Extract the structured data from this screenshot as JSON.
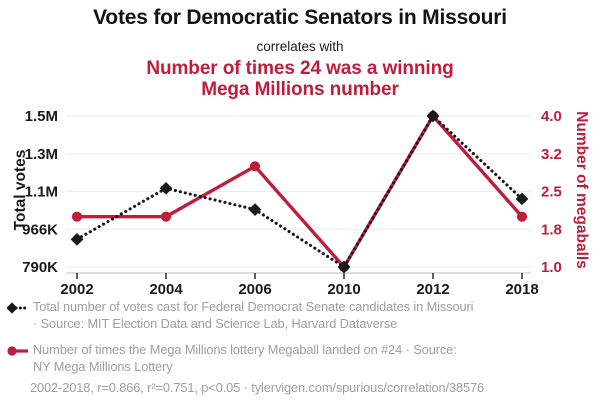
{
  "header": {
    "title": "Votes for Democratic Senators in Missouri",
    "connector": "correlates with",
    "subtitle_line1": "Number of times 24 was a winning",
    "subtitle_line2": "Mega Millions number"
  },
  "colors": {
    "accent_red": "#be1e3c",
    "series_black": "#1a1a1a",
    "caption_gray": "#9e9e9e",
    "gridline": "#ececec",
    "axis_line": "#c9c9c9"
  },
  "chart_data": {
    "type": "line",
    "categories": [
      "2002",
      "2004",
      "2006",
      "2010",
      "2012",
      "2018"
    ],
    "series": [
      {
        "name": "Total number of votes cast for Federal Democrat Senate candidates in Missouri",
        "axis": "left",
        "values": [
          920000,
          1160000,
          1060000,
          790000,
          1500000,
          1110000
        ],
        "color": "#1a1a1a",
        "marker": "diamond",
        "line_style": "dotted"
      },
      {
        "name": "Number of times the Mega Millions lottery Megaball landed on #24",
        "axis": "right",
        "values": [
          2,
          2,
          3,
          1,
          4,
          2
        ],
        "color": "#be1e3c",
        "marker": "circle",
        "line_style": "solid"
      }
    ],
    "y_axis_left": {
      "label": "Total votes",
      "tick_labels_top_to_bottom": [
        "1.5M",
        "1.3M",
        "1.1M",
        "966K",
        "790K"
      ],
      "range": [
        790000,
        1500000
      ]
    },
    "y_axis_right": {
      "label": "Number of megaballs",
      "tick_labels_top_to_bottom": [
        "4.0",
        "3.2",
        "2.5",
        "1.8",
        "1.0"
      ],
      "range": [
        1,
        4
      ]
    },
    "grid": true,
    "legend_position": "bottom"
  },
  "legend": [
    {
      "lines": [
        "Total number of votes cast for Federal Democrat Senate candidates in Missouri",
        "· Source: MIT Election Data and Science Lab, Harvard Dataverse"
      ]
    },
    {
      "lines": [
        "Number of times the Mega Millions lottery Megaball landed on #24 · Source:",
        "NY Mega Millions Lottery"
      ]
    }
  ],
  "footer": {
    "stats": "2002-2018, r=0.866, r²=0.751, p<0.05 · tylervigen.com/spurious/correlation/38576"
  }
}
